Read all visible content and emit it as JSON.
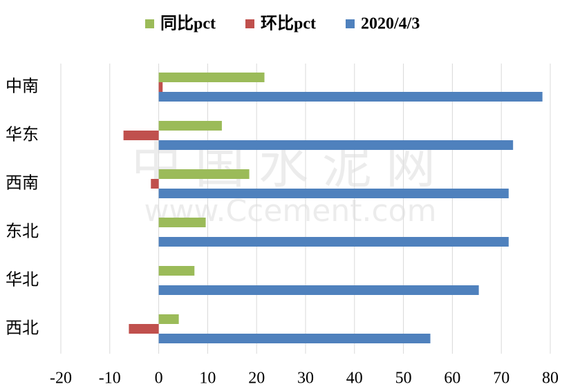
{
  "chart_data": {
    "type": "hbar",
    "categories": [
      "中南",
      "华东",
      "西南",
      "东北",
      "华北",
      "西北"
    ],
    "series": [
      {
        "name": "同比pct",
        "color": "#9bbb59",
        "values": [
          21.6,
          12.9,
          18.5,
          9.6,
          7.3,
          4.1
        ]
      },
      {
        "name": "环比pct",
        "color": "#c0504d",
        "values": [
          0.8,
          -7.2,
          -1.6,
          0,
          0,
          -6.1
        ]
      },
      {
        "name": "2020/4/3",
        "color": "#4f81bd",
        "values": [
          78.4,
          72.4,
          71.5,
          71.5,
          65.4,
          55.5
        ]
      }
    ],
    "xlim": [
      -20,
      80
    ],
    "xticks": [
      -20,
      -10,
      0,
      10,
      20,
      30,
      40,
      50,
      60,
      70,
      80
    ],
    "grid": true,
    "legend": "top",
    "watermark": [
      "中国水泥网",
      "www.Ccement.com"
    ]
  }
}
